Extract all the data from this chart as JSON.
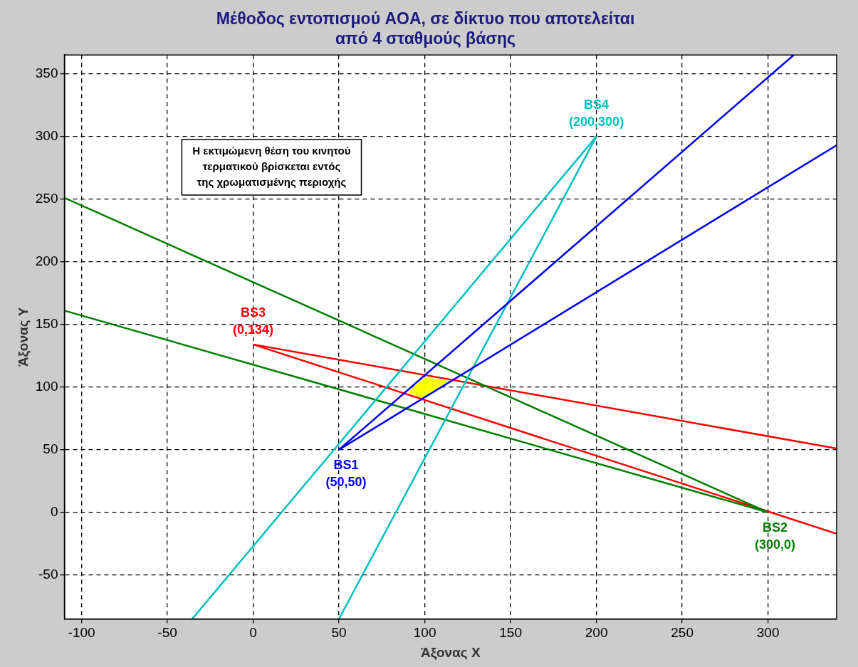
{
  "chart_data": {
    "type": "line",
    "title": "Μέθοδος εντοπισμού AOA, σε δίκτυο που αποτελείται\nαπό 4 σταθμούς βάσης",
    "xlabel": "Άξονας X",
    "ylabel": "Άξονας Y",
    "xlim": [
      -110,
      340
    ],
    "ylim": [
      -85,
      365
    ],
    "xticks": [
      -100,
      -50,
      0,
      50,
      100,
      150,
      200,
      250,
      300
    ],
    "yticks": [
      -50,
      0,
      50,
      100,
      150,
      200,
      250,
      300,
      350
    ],
    "grid": true,
    "legend": false,
    "marker": "none",
    "line_style": "solid",
    "series": [
      {
        "type": "area",
        "color": "#ffff00",
        "x": [
          90,
          100,
          114,
          98,
          90
        ],
        "values": [
          96,
          108,
          105,
          91,
          96
        ]
      },
      {
        "color": "#0000ff",
        "x": [
          50,
          315
        ],
        "values": [
          50,
          365
        ]
      },
      {
        "color": "#0000ff",
        "x": [
          50,
          340
        ],
        "values": [
          50,
          293
        ]
      },
      {
        "color": "#00c0c0",
        "x": [
          200,
          -35.5
        ],
        "values": [
          300,
          -85
        ]
      },
      {
        "color": "#00c0c0",
        "x": [
          200,
          50
        ],
        "values": [
          300,
          -85
        ]
      },
      {
        "color": "#007f00",
        "x": [
          300,
          -110
        ],
        "values": [
          0,
          251
        ]
      },
      {
        "color": "#007f00",
        "x": [
          300,
          -110
        ],
        "values": [
          0,
          161
        ]
      },
      {
        "color": "#ff0000",
        "x": [
          0,
          340
        ],
        "values": [
          134,
          51
        ]
      },
      {
        "color": "#ff0000",
        "x": [
          0,
          340
        ],
        "values": [
          134,
          -17
        ]
      }
    ],
    "annotations": [
      "Η εκτιμώμενη θέση του κινητού\nτερματικού βρίσκεται εντός\nτης χρωματισμένης περιοχής",
      {
        "text": "BS1\n(50,50)",
        "x": 50,
        "y": 50
      },
      {
        "text": "BS2\n(300,0)",
        "x": 300,
        "y": 0
      },
      {
        "text": "BS3\n(0,134)",
        "x": 0,
        "y": 134
      },
      {
        "text": "BS4\n(200,300)",
        "x": 200,
        "y": 300
      }
    ]
  }
}
